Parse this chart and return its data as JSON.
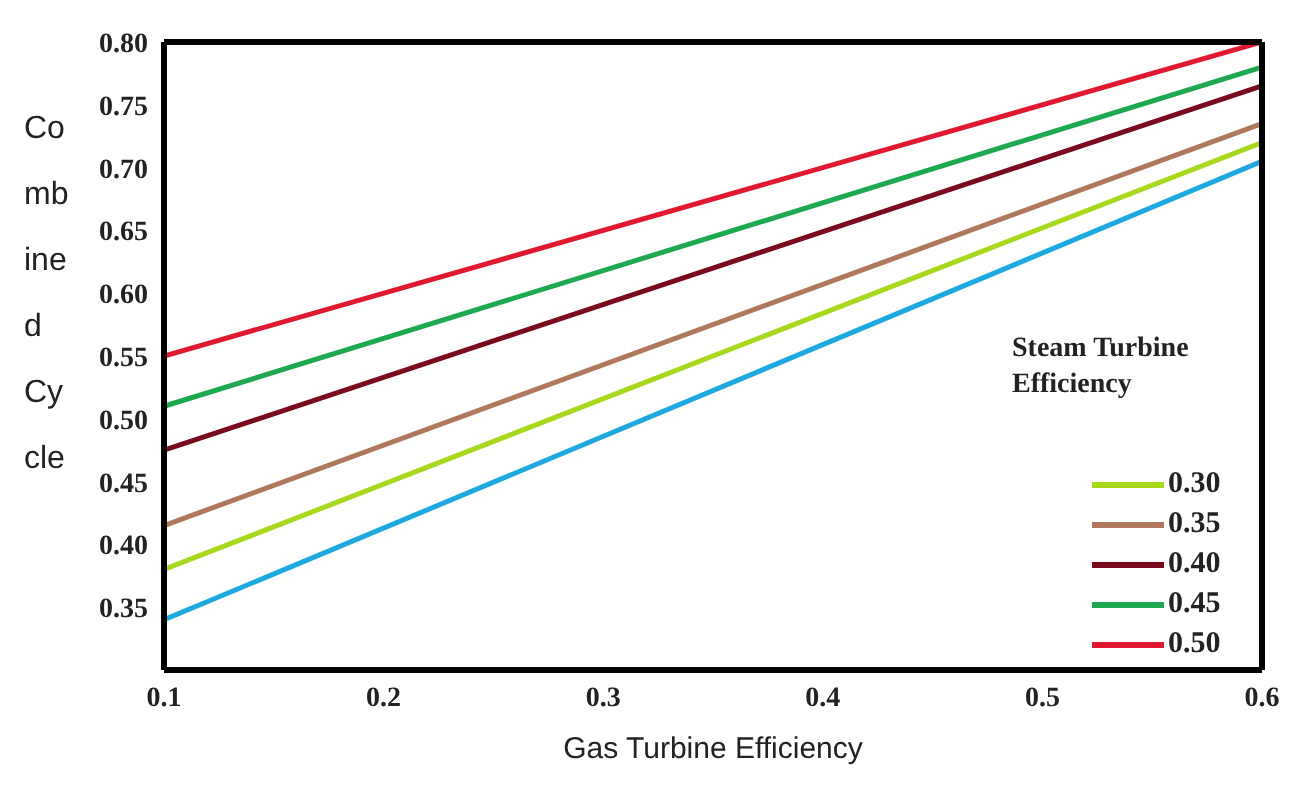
{
  "chart_data": {
    "type": "line",
    "xlabel": "Gas Turbine Efficiency",
    "ylabel": "Combined Cycle",
    "legend_title": "Steam Turbine Efficiency",
    "legend": "right",
    "marker": "none",
    "line_style": "solid",
    "xlim": [
      0.1,
      0.6
    ],
    "xticks": [
      0.1,
      0.2,
      0.3,
      0.4,
      0.5,
      0.6
    ],
    "ylim": [
      0.3,
      0.8
    ],
    "yticks": [
      0.35,
      {
        "value": 0.4,
        "label": "0.40"
      },
      0.45,
      {
        "value": 0.5,
        "label": "0.50"
      },
      0.55,
      {
        "value": 0.6,
        "label": "0.60"
      },
      0.65,
      {
        "value": 0.7,
        "label": "0.70"
      },
      0.75,
      {
        "value": 0.8,
        "label": "0.80"
      }
    ],
    "x": [
      0.1,
      0.6
    ],
    "series": [
      {
        "color": "#1ea8e0",
        "values": [
          0.34,
          0.705
        ]
      },
      {
        "name": "0.30",
        "color": "#a8d81c",
        "values": [
          0.38,
          0.72
        ]
      },
      {
        "name": "0.35",
        "color": "#b0785a",
        "values": [
          0.415,
          0.735
        ]
      },
      {
        "name": "0.40",
        "color": "#7a0a1e",
        "values": [
          0.475,
          0.765
        ]
      },
      {
        "name": "0.45",
        "color": "#1ea850",
        "values": [
          0.51,
          0.78
        ]
      },
      {
        "name": "0.50",
        "color": "#e01830",
        "values": [
          0.55,
          0.8
        ]
      }
    ]
  }
}
